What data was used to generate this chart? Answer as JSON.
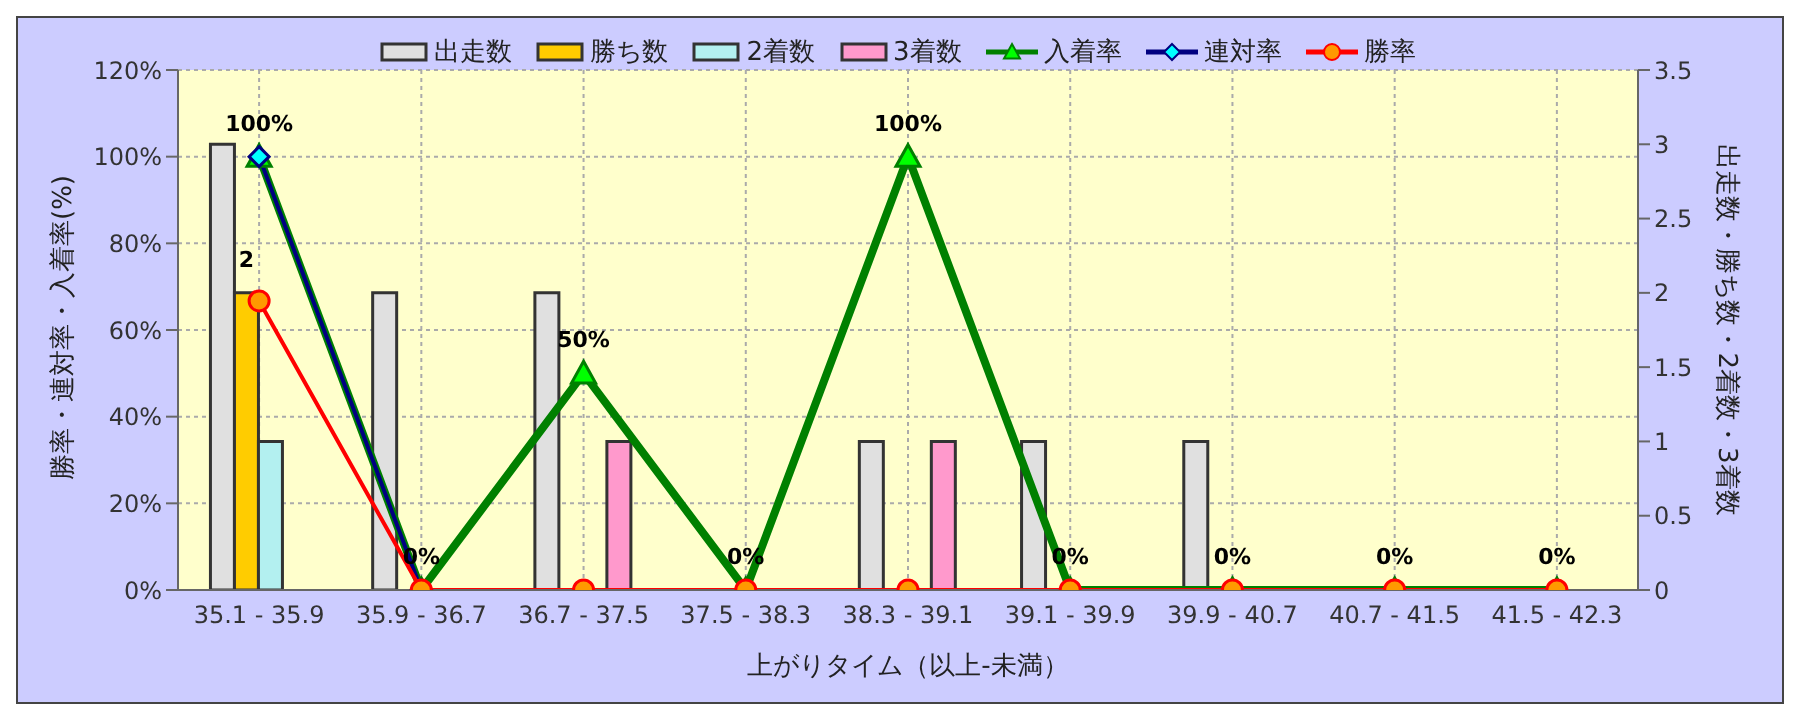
{
  "chart_data": {
    "type": "bar",
    "xlabel": "上がりタイム（以上-未満）",
    "ylabel": "勝率・連対率・入着率(%)",
    "y2label": "出走数・勝ち数・2着数・3着数",
    "categories": [
      "35.1 - 35.9",
      "35.9 - 36.7",
      "36.7 - 37.5",
      "37.5 - 38.3",
      "38.3 - 39.1",
      "39.1 - 39.9",
      "39.9 - 40.7",
      "40.7 - 41.5",
      "41.5 - 42.3"
    ],
    "series": [
      {
        "name": "出走数",
        "axis": "y2",
        "color": "#e0e0e0",
        "values": [
          3,
          2,
          2,
          0,
          1,
          1,
          1,
          0,
          0
        ]
      },
      {
        "name": "勝ち数",
        "axis": "y2",
        "color": "#ffcc00",
        "values": [
          2,
          0,
          0,
          0,
          0,
          0,
          0,
          0,
          0
        ],
        "value_labels": [
          "2",
          null,
          null,
          null,
          null,
          null,
          null,
          null,
          null
        ]
      },
      {
        "name": "2着数",
        "axis": "y2",
        "color": "#b3f0f0",
        "values": [
          1,
          0,
          0,
          0,
          0,
          0,
          0,
          0,
          0
        ]
      },
      {
        "name": "3着数",
        "axis": "y2",
        "color": "#ff99cc",
        "values": [
          0,
          0,
          1,
          0,
          1,
          0,
          0,
          0,
          0
        ]
      },
      {
        "name": "入着率",
        "type": "line",
        "axis": "y",
        "marker": "triangle",
        "color": "#008000",
        "values": [
          100,
          0,
          50,
          0,
          100,
          0,
          0,
          0,
          0
        ],
        "value_labels": [
          "100%",
          "0%",
          "50%",
          "0%",
          "100%",
          "0%",
          "0%",
          "0%",
          "0%"
        ]
      },
      {
        "name": "連対率",
        "type": "line",
        "axis": "y",
        "marker": "diamond",
        "color": "#000080",
        "values": [
          100,
          0,
          null,
          null,
          null,
          null,
          null,
          null,
          null
        ]
      },
      {
        "name": "勝率",
        "type": "line",
        "axis": "y",
        "marker": "circle",
        "color": "#ff0000",
        "values": [
          66.7,
          0,
          0,
          0,
          0,
          0,
          0,
          0,
          0
        ]
      }
    ],
    "ylim": [
      0,
      120
    ],
    "yticks": [
      {
        "value": 0,
        "label": "0%"
      },
      {
        "value": 20,
        "label": "20%"
      },
      {
        "value": 40,
        "label": "40%"
      },
      {
        "value": 60,
        "label": "60%"
      },
      {
        "value": 80,
        "label": "80%"
      },
      {
        "value": 100,
        "label": "100%"
      },
      {
        "value": 120,
        "label": "120%"
      }
    ],
    "y2lim": [
      0,
      3.5
    ],
    "y2ticks": [
      0,
      0.5,
      1,
      1.5,
      2,
      2.5,
      3,
      3.5
    ],
    "grid": true,
    "legend": "top"
  }
}
